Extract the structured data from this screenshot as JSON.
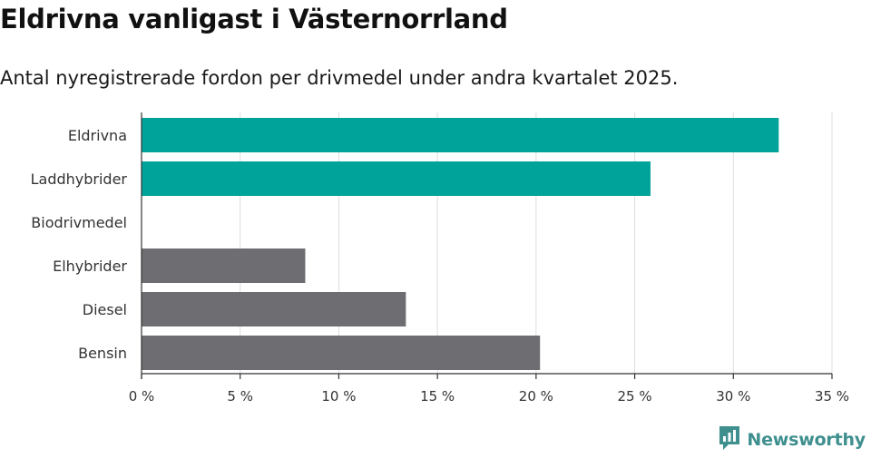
{
  "title": "Eldrivna vanligast i Västernorrland",
  "subtitle": "Antal nyregistrerade fordon per drivmedel under andra kvartalet 2025.",
  "brand": {
    "name": "Newsworthy",
    "icon": "newsworthy-logo-icon",
    "color": "#3f8f8f"
  },
  "colors": {
    "highlight": "#00a39a",
    "default": "#6e6d72",
    "grid": "#dddddd",
    "axis": "#333333"
  },
  "chart_data": {
    "type": "bar",
    "orientation": "horizontal",
    "categories": [
      "Eldrivna",
      "Laddhybrider",
      "Biodrivmedel",
      "Elhybrider",
      "Diesel",
      "Bensin"
    ],
    "values": [
      32.3,
      25.8,
      0,
      8.3,
      13.4,
      20.2
    ],
    "highlighted": [
      true,
      true,
      false,
      false,
      false,
      false
    ],
    "unit": "%",
    "xlim": [
      0,
      35
    ],
    "xticks": [
      0,
      5,
      10,
      15,
      20,
      25,
      30,
      35
    ],
    "xtick_labels": [
      "0 %",
      "5 %",
      "10 %",
      "15 %",
      "20 %",
      "25 %",
      "30 %",
      "35 %"
    ],
    "grid": "vertical"
  }
}
